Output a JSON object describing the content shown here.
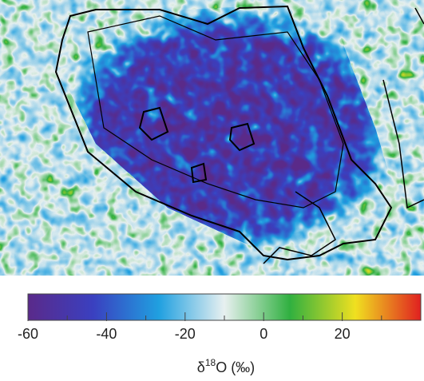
{
  "chart_data": {
    "type": "colorbar",
    "xlabel": {
      "base": "δ",
      "sup": "18",
      "rest": "O (‰)"
    },
    "xlim": [
      -60,
      40
    ],
    "xticks": [
      -60,
      -40,
      -20,
      0,
      20
    ],
    "minor_step": 10,
    "colors": [
      "#5a2a8a",
      "#3a40c0",
      "#20a0e0",
      "#e8f0f0",
      "#30b040",
      "#f0e020",
      "#e02020"
    ]
  }
}
